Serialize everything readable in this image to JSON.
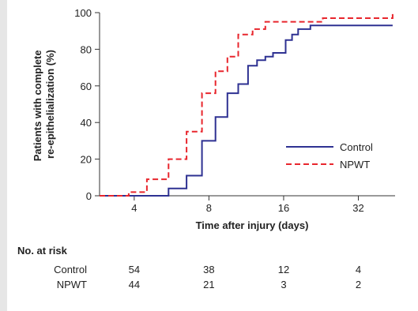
{
  "chart_data": {
    "type": "line",
    "step": true,
    "x_scale": "log2",
    "xlabel": "Time after injury (days)",
    "ylabel": "Patients with complete re-epithelialization (%)",
    "ylabel_lines": [
      "Patients with complete",
      "re-epithelialization (%)"
    ],
    "xlim": [
      2.9,
      45
    ],
    "ylim": [
      0,
      100
    ],
    "x_ticks": [
      4,
      8,
      16,
      32
    ],
    "x_tick_labels": [
      "4",
      "8",
      "16",
      "32"
    ],
    "y_ticks": [
      0,
      20,
      40,
      60,
      80,
      100
    ],
    "y_tick_labels": [
      "0",
      "20",
      "40",
      "60",
      "80",
      "100"
    ],
    "legend_position": "right",
    "series": [
      {
        "name": "Control",
        "color": "#2e3192",
        "style": "solid",
        "x": [
          2.9,
          5.5,
          6.5,
          7.5,
          8.5,
          9.5,
          10.5,
          11.5,
          12.5,
          13.5,
          14.5,
          16.3,
          17.3,
          18.3,
          20.5,
          44
        ],
        "y": [
          0,
          4,
          11,
          30,
          43,
          56,
          61,
          71,
          74,
          76,
          78,
          85,
          88,
          91,
          93,
          93
        ]
      },
      {
        "name": "NPWT",
        "color": "#e8262d",
        "style": "dashed",
        "x": [
          2.9,
          3.8,
          4.5,
          5.5,
          6.5,
          7.5,
          8.5,
          9.5,
          10.5,
          12.0,
          13.5,
          23.0,
          44
        ],
        "y": [
          0,
          2,
          9,
          20,
          35,
          56,
          68,
          76,
          88,
          91,
          95,
          97,
          100
        ]
      }
    ],
    "number_at_risk": {
      "title": "No. at risk",
      "rows": [
        {
          "name": "Control",
          "values": [
            "54",
            "38",
            "12",
            "4"
          ]
        },
        {
          "name": "NPWT",
          "values": [
            "44",
            "21",
            "3",
            "2"
          ]
        }
      ]
    }
  }
}
